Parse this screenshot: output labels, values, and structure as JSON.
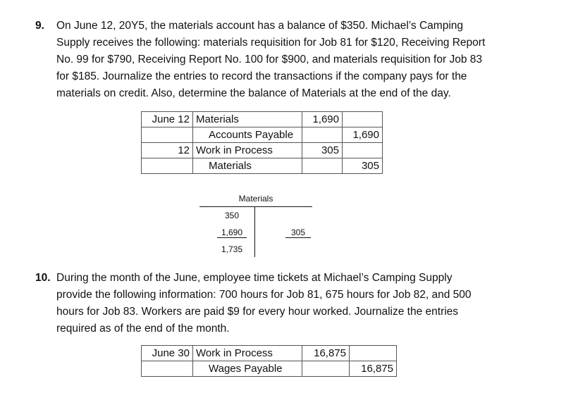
{
  "problem9": {
    "number": "9.",
    "lines": [
      "On June 12, 20Y5, the materials account has a balance of $350. Michael’s Camping",
      "Supply receives the following: materials requisition for Job 81 for $120, Receiving Report",
      "No. 99 for $790, Receiving Report No. 100 for $900, and materials requisition for Job 83",
      "for $185. Journalize the entries to record the transactions if the company pays for the",
      "materials on credit. Also, determine the balance of Materials at the end of the day."
    ]
  },
  "journal9": {
    "rows": [
      {
        "date": "June 12",
        "account": "Materials",
        "debit": "1,690",
        "credit": ""
      },
      {
        "date": "",
        "account": "Accounts Payable",
        "debit": "",
        "credit": "1,690"
      },
      {
        "date": "12",
        "account": "Work in Process",
        "debit": "305",
        "credit": ""
      },
      {
        "date": "",
        "account": "Materials",
        "debit": "",
        "credit": "305"
      }
    ]
  },
  "taccount": {
    "title": "Materials",
    "debits": [
      "350",
      "1,690",
      "1,735"
    ],
    "credits": [
      "305"
    ]
  },
  "problem10": {
    "number": "10.",
    "lines": [
      "During the month of the June, employee time tickets at Michael’s Camping Supply",
      "provide the following information: 700 hours for Job 81, 675 hours for Job 82, and 500",
      "hours for Job 83. Workers are paid $9 for every hour worked. Journalize the entries",
      "required as of the end of the month."
    ]
  },
  "journal10": {
    "rows": [
      {
        "date": "June 30",
        "account": "Work in Process",
        "debit": "16,875",
        "credit": ""
      },
      {
        "date": "",
        "account": "Wages Payable",
        "debit": "",
        "credit": "16,875"
      }
    ]
  }
}
